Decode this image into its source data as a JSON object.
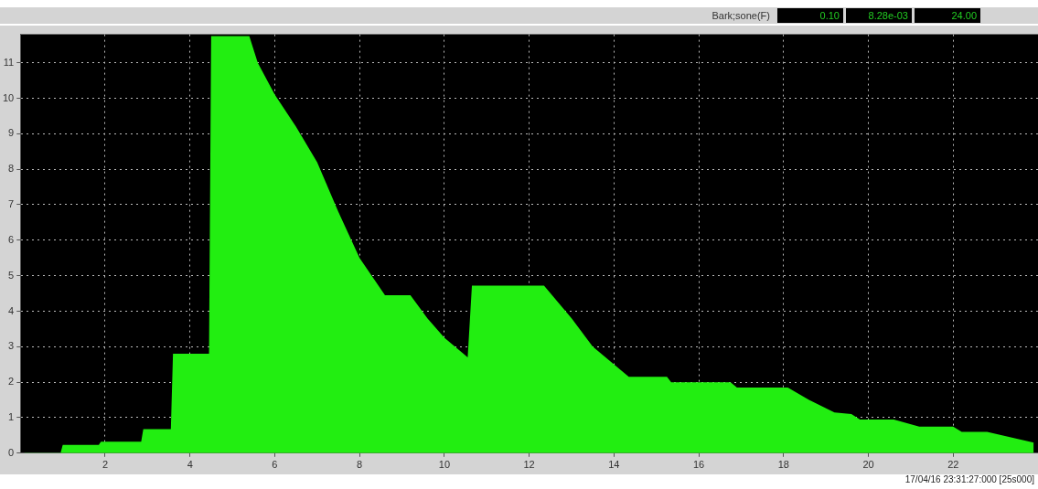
{
  "chart_data": {
    "type": "area",
    "xlim": [
      0,
      24
    ],
    "ylim": [
      0,
      11.8
    ],
    "xticks": [
      2,
      4,
      6,
      8,
      10,
      12,
      14,
      16,
      18,
      20,
      22
    ],
    "yticks": [
      0,
      1,
      2,
      3,
      4,
      5,
      6,
      7,
      8,
      9,
      10,
      11
    ],
    "grid": true,
    "annotations": [
      "Bark;sone(F)",
      "0.10",
      "8.28e-03",
      "24.00",
      "17/04/16 23:31:27:000 [25s000]"
    ],
    "series": [
      {
        "color": "#22ee11",
        "x": [
          0.1,
          0.95,
          1.0,
          1.85,
          1.9,
          2.85,
          2.9,
          3.55,
          3.6,
          4.45,
          4.5,
          5.4,
          5.6,
          6.0,
          6.5,
          7.0,
          7.5,
          8.0,
          8.6,
          9.2,
          9.6,
          10.0,
          10.55,
          10.65,
          12.35,
          13.0,
          13.5,
          14.35,
          15.25,
          15.35,
          16.75,
          16.9,
          18.1,
          18.6,
          19.2,
          19.6,
          19.8,
          20.6,
          21.2,
          22.0,
          22.2,
          22.8,
          23.9
        ],
        "values": [
          0.01,
          0.01,
          0.23,
          0.23,
          0.32,
          0.32,
          0.68,
          0.68,
          2.8,
          2.8,
          11.75,
          11.75,
          11.0,
          10.1,
          9.2,
          8.2,
          6.8,
          5.5,
          4.45,
          4.45,
          3.8,
          3.25,
          2.7,
          4.72,
          4.72,
          3.8,
          3.0,
          2.15,
          2.15,
          2.0,
          2.0,
          1.85,
          1.85,
          1.5,
          1.15,
          1.1,
          0.95,
          0.95,
          0.75,
          0.75,
          0.6,
          0.6,
          0.3
        ]
      }
    ]
  }
}
